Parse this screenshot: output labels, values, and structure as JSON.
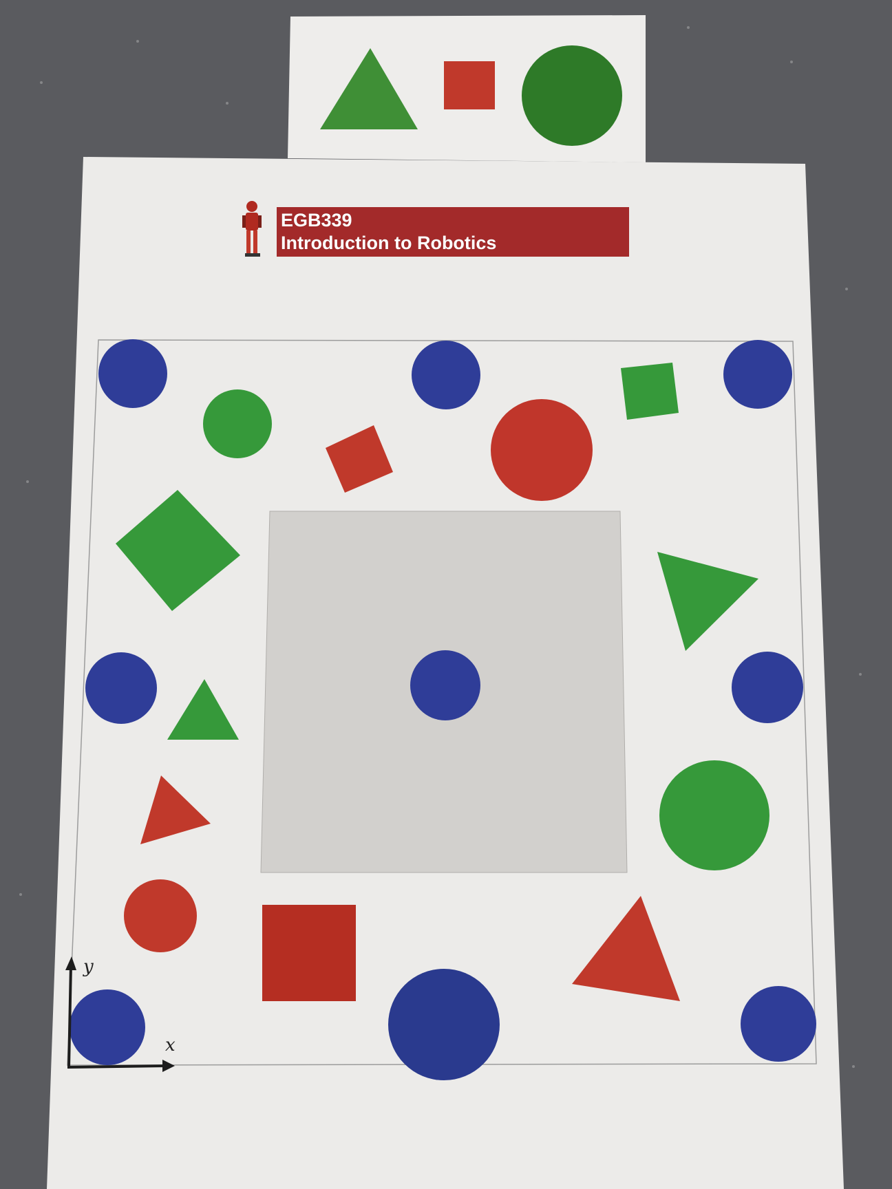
{
  "banner": {
    "course_code": "EGB339",
    "course_title": "Introduction to Robotics"
  },
  "axes": {
    "x_label": "x",
    "y_label": "y"
  },
  "colors": {
    "floor": "#5a5b5f",
    "paper": "#ecebe9",
    "center_panel": "#d2d0cd",
    "blue": "#2f3d98",
    "green": "#36993a",
    "red": "#b53026",
    "banner": "#a32a2a"
  },
  "targets": [
    {
      "shape": "triangle",
      "color": "green"
    },
    {
      "shape": "square",
      "color": "red"
    },
    {
      "shape": "circle",
      "color": "green"
    }
  ],
  "board_shapes": [
    {
      "shape": "circle",
      "color": "blue"
    },
    {
      "shape": "circle",
      "color": "blue"
    },
    {
      "shape": "circle",
      "color": "blue"
    },
    {
      "shape": "circle",
      "color": "green"
    },
    {
      "shape": "square",
      "color": "red"
    },
    {
      "shape": "circle",
      "color": "red"
    },
    {
      "shape": "square",
      "color": "green"
    },
    {
      "shape": "square",
      "color": "green"
    },
    {
      "shape": "triangle",
      "color": "green"
    },
    {
      "shape": "circle",
      "color": "blue"
    },
    {
      "shape": "circle",
      "color": "blue"
    },
    {
      "shape": "circle",
      "color": "blue"
    },
    {
      "shape": "triangle",
      "color": "green"
    },
    {
      "shape": "triangle",
      "color": "red"
    },
    {
      "shape": "circle",
      "color": "green"
    },
    {
      "shape": "circle",
      "color": "red"
    },
    {
      "shape": "square",
      "color": "red"
    },
    {
      "shape": "triangle",
      "color": "red"
    },
    {
      "shape": "circle",
      "color": "blue"
    },
    {
      "shape": "circle",
      "color": "blue"
    },
    {
      "shape": "circle",
      "color": "blue"
    }
  ]
}
